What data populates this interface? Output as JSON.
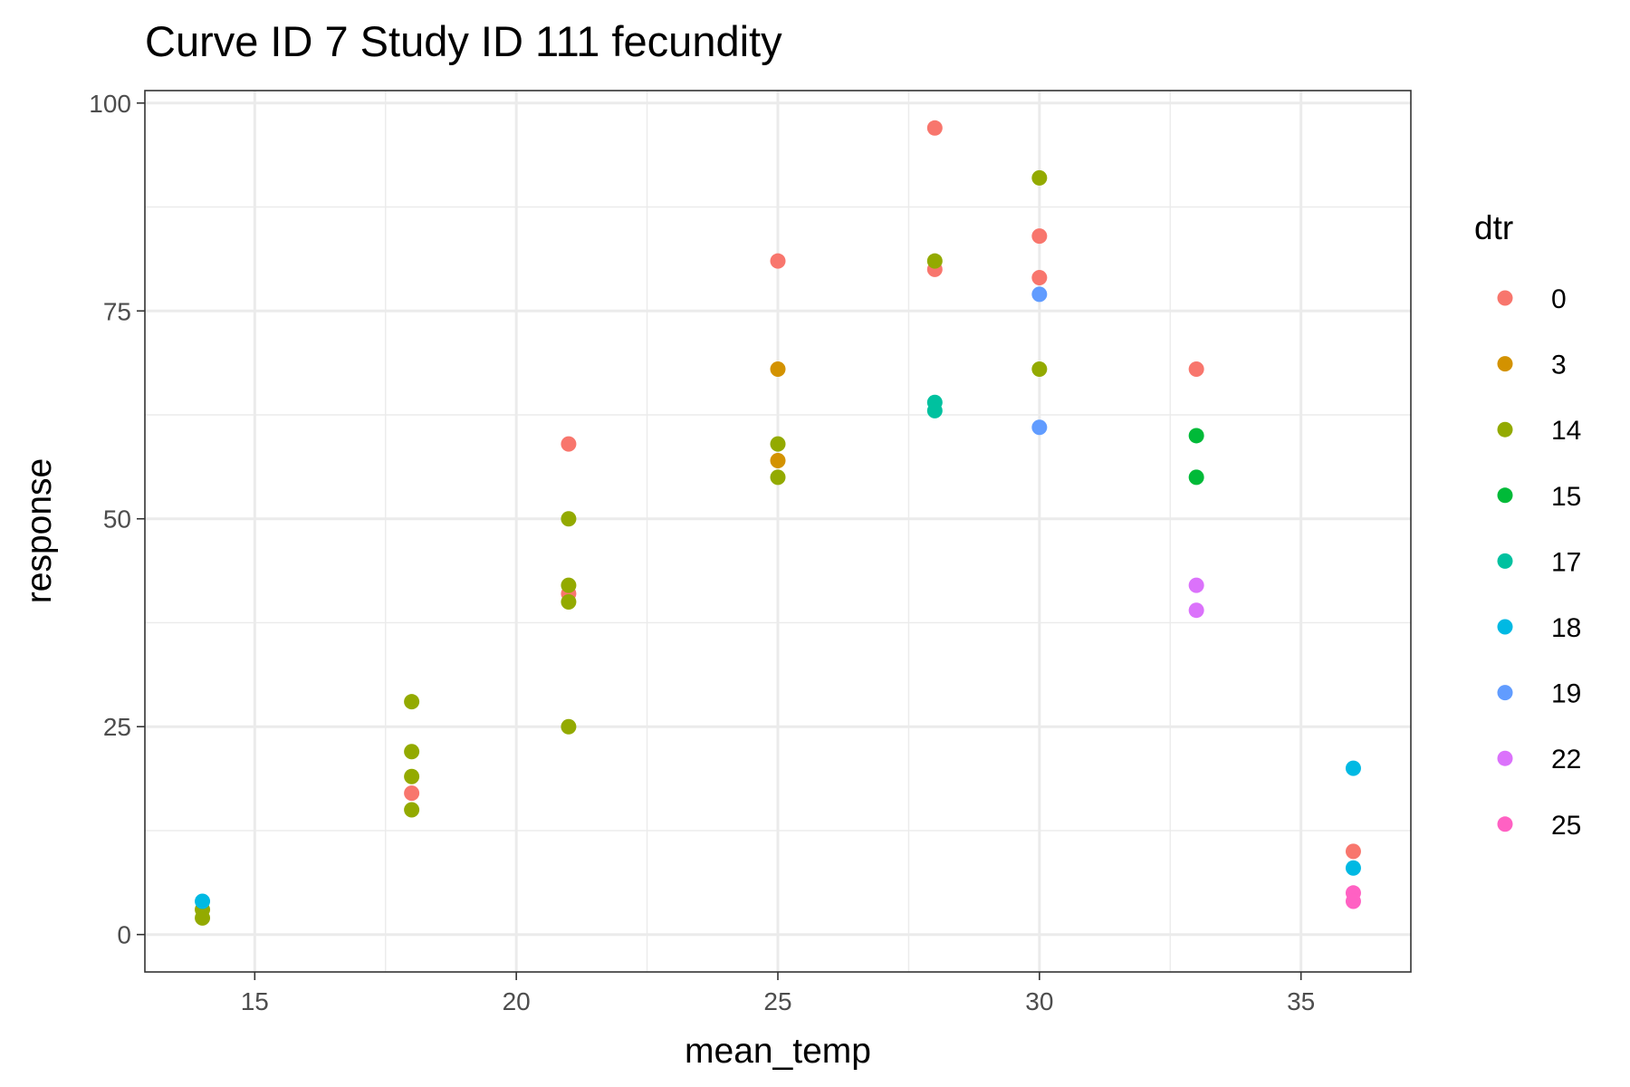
{
  "chart_data": {
    "type": "scatter",
    "title": "Curve ID 7 Study ID 111 fecundity",
    "xlabel": "mean_temp",
    "ylabel": "response",
    "xlim": [
      12.9,
      37.1
    ],
    "ylim": [
      -4.5,
      101.5
    ],
    "x_ticks": [
      15,
      20,
      25,
      30,
      35
    ],
    "y_ticks": [
      0,
      25,
      50,
      75,
      100
    ],
    "x_tick_labels": [
      "15",
      "20",
      "25",
      "30",
      "35"
    ],
    "y_tick_labels": [
      "0",
      "25",
      "50",
      "75",
      "100"
    ],
    "grid": true,
    "legend": {
      "title": "dtr",
      "placement": "right"
    },
    "series": [
      {
        "name": "0",
        "color": "#F8766D",
        "points": [
          [
            18,
            17
          ],
          [
            21,
            59
          ],
          [
            21,
            41
          ],
          [
            25,
            81
          ],
          [
            28,
            97
          ],
          [
            28,
            80
          ],
          [
            30,
            84
          ],
          [
            30,
            79
          ],
          [
            33,
            68
          ],
          [
            36,
            10
          ]
        ]
      },
      {
        "name": "3",
        "color": "#D39200",
        "points": [
          [
            25,
            68
          ],
          [
            25,
            57
          ]
        ]
      },
      {
        "name": "14",
        "color": "#93AA00",
        "points": [
          [
            14,
            2
          ],
          [
            14,
            3
          ],
          [
            18,
            28
          ],
          [
            18,
            22
          ],
          [
            18,
            19
          ],
          [
            18,
            15
          ],
          [
            21,
            50
          ],
          [
            21,
            42
          ],
          [
            21,
            40
          ],
          [
            21,
            25
          ],
          [
            25,
            59
          ],
          [
            25,
            55
          ],
          [
            28,
            81
          ],
          [
            30,
            91
          ],
          [
            30,
            68
          ]
        ]
      },
      {
        "name": "15",
        "color": "#00BA38",
        "points": [
          [
            33,
            60
          ],
          [
            33,
            55
          ]
        ]
      },
      {
        "name": "17",
        "color": "#00C19F",
        "points": [
          [
            28,
            64
          ],
          [
            28,
            63
          ]
        ]
      },
      {
        "name": "18",
        "color": "#00B9E3",
        "points": [
          [
            14,
            4
          ],
          [
            36,
            20
          ],
          [
            36,
            8
          ]
        ]
      },
      {
        "name": "19",
        "color": "#619CFF",
        "points": [
          [
            30,
            77
          ],
          [
            30,
            61
          ]
        ]
      },
      {
        "name": "22",
        "color": "#DB72FB",
        "points": [
          [
            33,
            42
          ],
          [
            33,
            39
          ]
        ]
      },
      {
        "name": "25",
        "color": "#FF61C3",
        "points": [
          [
            36,
            5
          ],
          [
            36,
            4
          ]
        ]
      }
    ]
  }
}
